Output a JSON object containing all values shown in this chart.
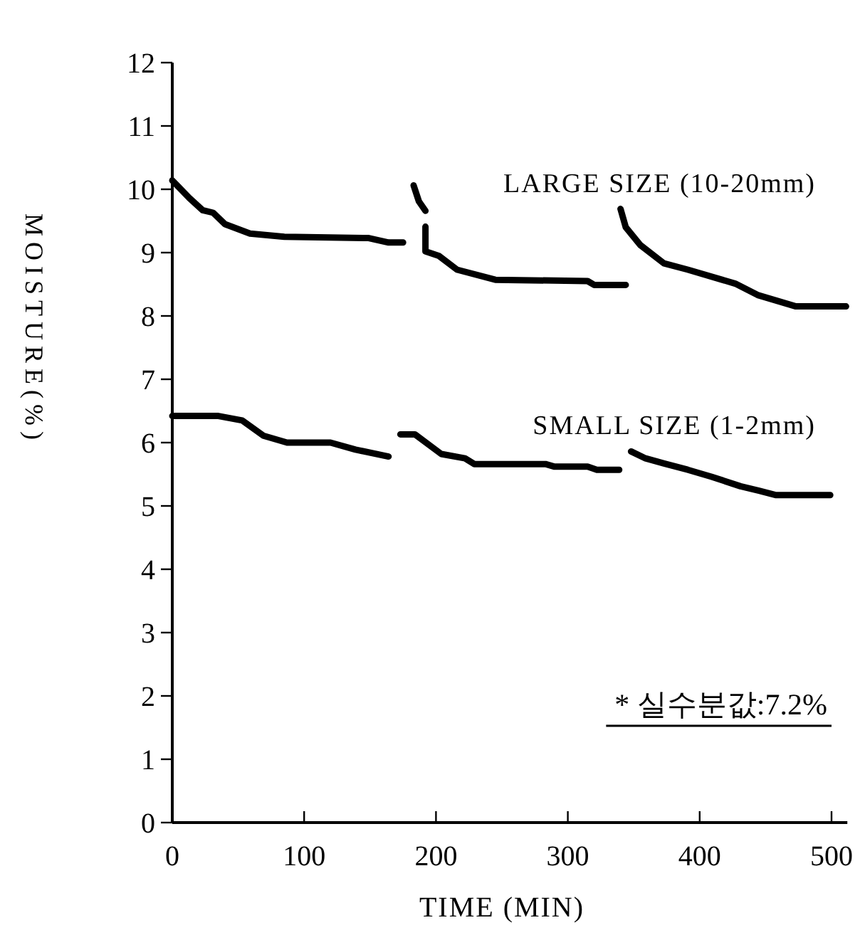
{
  "chart_data": {
    "type": "line",
    "xlabel": "TIME (MIN)",
    "ylabel": "MOISTURE(%)",
    "xlim": [
      0,
      512
    ],
    "ylim": [
      0,
      12
    ],
    "xticks": [
      0,
      100,
      200,
      300,
      400,
      500
    ],
    "yticks": [
      0,
      1,
      2,
      3,
      4,
      5,
      6,
      7,
      8,
      9,
      10,
      11,
      12
    ],
    "grid": false,
    "marker": "none",
    "line_style": "solid",
    "annotations": [
      "* 실수분값:7.2%"
    ],
    "series": [
      {
        "name": "LARGE SIZE (10-20mm)",
        "color": "#000000",
        "x": [
          0,
          13,
          23,
          31,
          40,
          59,
          85,
          149,
          164,
          175,
          null,
          183,
          187,
          192,
          null,
          192,
          192,
          202,
          216,
          245,
          315,
          320,
          344,
          null,
          340,
          344,
          355,
          373,
          391,
          427,
          444,
          473,
          511
        ],
        "values": [
          10.14,
          9.86,
          9.67,
          9.63,
          9.45,
          9.3,
          9.25,
          9.23,
          9.16,
          9.16,
          null,
          10.06,
          9.81,
          9.66,
          null,
          9.41,
          9.02,
          8.95,
          8.73,
          8.57,
          8.55,
          8.49,
          8.49,
          null,
          9.69,
          9.4,
          9.12,
          8.83,
          8.73,
          8.51,
          8.33,
          8.15,
          8.15
        ]
      },
      {
        "name": "SMALL SIZE (1-2mm)",
        "color": "#000000",
        "x": [
          0,
          35,
          53,
          69,
          87,
          120,
          139,
          164,
          null,
          173,
          184,
          204,
          222,
          229,
          283,
          290,
          315,
          322,
          339,
          null,
          348,
          359,
          373,
          391,
          409,
          431,
          445,
          458,
          499
        ],
        "values": [
          6.42,
          6.42,
          6.35,
          6.11,
          6.0,
          6.0,
          5.89,
          5.78,
          null,
          6.13,
          6.13,
          5.82,
          5.75,
          5.66,
          5.66,
          5.62,
          5.62,
          5.57,
          5.57,
          null,
          5.86,
          5.75,
          5.67,
          5.57,
          5.46,
          5.31,
          5.24,
          5.17,
          5.17
        ]
      }
    ]
  }
}
